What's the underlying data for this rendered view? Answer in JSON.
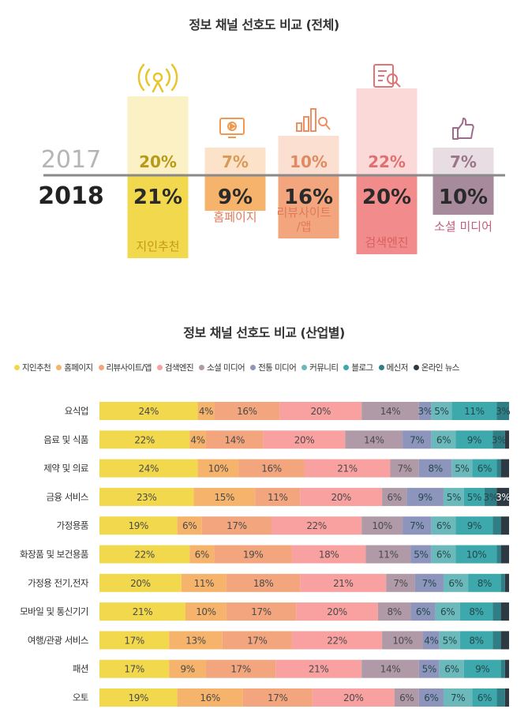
{
  "top": {
    "title": "정보 채널 선호도 비교 (전체)",
    "year_prev": "2017",
    "year_curr": "2018"
  },
  "bottom": {
    "title": "정보 채널 선호도 비교 (산업별)"
  },
  "chart_data": [
    {
      "type": "bar",
      "title": "정보 채널 선호도 비교 (전체)",
      "categories": [
        "지인추천",
        "홈페이지",
        "리뷰사이트/앱",
        "검색엔진",
        "소셜 미디어"
      ],
      "series": [
        {
          "name": "2017",
          "values": [
            20,
            7,
            10,
            22,
            7
          ]
        },
        {
          "name": "2018",
          "values": [
            21,
            9,
            16,
            20,
            10
          ]
        }
      ],
      "value_labels_2017": [
        "20%",
        "7%",
        "10%",
        "22%",
        "7%"
      ],
      "value_labels_2018": [
        "21%",
        "9%",
        "16%",
        "20%",
        "10%"
      ],
      "category_labels": [
        [
          "지인추천"
        ],
        [
          "홈페이지"
        ],
        [
          "리뷰사이트",
          "/앱"
        ],
        [
          "검색엔진"
        ],
        [
          "소셜 미디어"
        ]
      ],
      "icons": [
        "antenna-icon",
        "monitor-icon",
        "review-chart-icon",
        "document-search-icon",
        "thumbs-up-icon"
      ],
      "colors_2018": [
        "#f2d84d",
        "#f6b36b",
        "#f3a67e",
        "#f28b8b",
        "#a78b9c"
      ],
      "colors_2017": [
        "#fbf1c4",
        "#fce2c9",
        "#fbe0d2",
        "#fbd9d9",
        "#e8dde3"
      ],
      "text_colors_2017": [
        "#b89a16",
        "#d99a56",
        "#e08a62",
        "#e07070",
        "#9a7688"
      ]
    },
    {
      "type": "bar",
      "stacked": true,
      "orientation": "horizontal",
      "title": "정보 채널 선호도 비교 (산업별)",
      "legend": [
        "지인추천",
        "홈페이지",
        "리뷰사이트/앱",
        "검색엔진",
        "소셜 미디어",
        "전통 미디어",
        "커뮤니티",
        "블로그",
        "메신저",
        "온라인 뉴스"
      ],
      "colors": [
        "#f2d84d",
        "#f6b36b",
        "#f3a67e",
        "#f8a1a0",
        "#b09aa7",
        "#8e95bd",
        "#6cb9bc",
        "#3ea9ad",
        "#2f7e86",
        "#2d3a44"
      ],
      "categories": [
        "요식업",
        "음료 및 식품",
        "제약 및 의료",
        "금융 서비스",
        "가정용품",
        "화장품 및 보건용품",
        "가정용 전기,전자",
        "모바일 및 통신기기",
        "여행/관광 서비스",
        "패션",
        "오토"
      ],
      "values": [
        [
          24,
          4,
          16,
          20,
          14,
          3,
          5,
          11,
          3,
          0
        ],
        [
          22,
          4,
          14,
          20,
          14,
          7,
          6,
          9,
          3,
          1
        ],
        [
          24,
          10,
          16,
          21,
          7,
          8,
          5,
          6,
          1,
          2
        ],
        [
          23,
          15,
          11,
          20,
          6,
          9,
          5,
          5,
          3,
          3
        ],
        [
          19,
          6,
          17,
          22,
          10,
          7,
          6,
          9,
          2,
          2
        ],
        [
          22,
          6,
          19,
          18,
          11,
          5,
          6,
          10,
          1,
          2
        ],
        [
          20,
          11,
          18,
          21,
          7,
          7,
          6,
          8,
          1,
          1
        ],
        [
          21,
          10,
          17,
          20,
          8,
          6,
          6,
          8,
          2,
          2
        ],
        [
          17,
          13,
          17,
          22,
          10,
          4,
          5,
          8,
          2,
          2
        ],
        [
          17,
          9,
          17,
          21,
          14,
          5,
          6,
          9,
          1,
          1
        ],
        [
          19,
          16,
          17,
          20,
          6,
          6,
          7,
          6,
          2,
          1
        ]
      ]
    }
  ]
}
